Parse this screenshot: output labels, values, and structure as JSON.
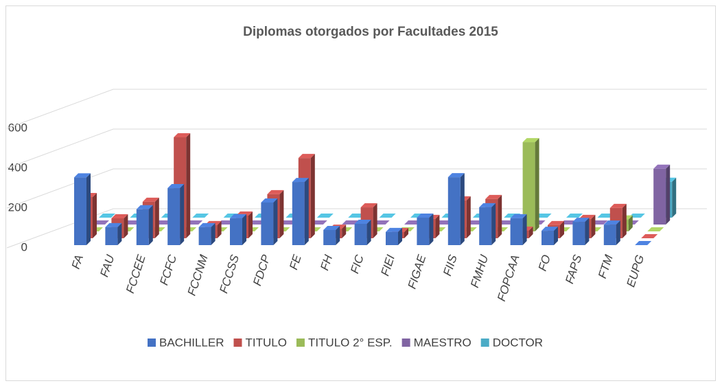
{
  "chart_data": {
    "type": "bar3d",
    "title": "Diplomas otorgados por Facultades 2015",
    "categories": [
      "FA",
      "FAU",
      "FCCEE",
      "FCFC",
      "FCCNM",
      "FCCSS",
      "FDCP",
      "FE",
      "FH",
      "FIC",
      "FIEI",
      "FIGAE",
      "FIIS",
      "FMHU",
      "FOPCAA",
      "FO",
      "FAPS",
      "FTM",
      "EUPG"
    ],
    "series": [
      {
        "name": "BACHILLER",
        "color": "#4472c4",
        "values": [
          340,
          90,
          180,
          286,
          90,
          135,
          214,
          317,
          76,
          107,
          66,
          138,
          341,
          190,
          135,
          72,
          117,
          103,
          0
        ]
      },
      {
        "name": "TITULO",
        "color": "#c0504d",
        "values": [
          207,
          100,
          183,
          507,
          66,
          114,
          221,
          403,
          48,
          155,
          31,
          97,
          190,
          197,
          38,
          66,
          97,
          152,
          0
        ]
      },
      {
        "name": "TITULO 2° ESP.",
        "color": "#9bbb59",
        "values": [
          0,
          0,
          0,
          0,
          0,
          0,
          0,
          0,
          0,
          0,
          0,
          0,
          0,
          0,
          448,
          0,
          0,
          60,
          0
        ]
      },
      {
        "name": "MAESTRO",
        "color": "#8064a2",
        "values": [
          0,
          0,
          0,
          0,
          0,
          0,
          0,
          0,
          0,
          0,
          0,
          0,
          0,
          0,
          0,
          0,
          0,
          0,
          280
        ]
      },
      {
        "name": "DOCTOR",
        "color": "#4bacc6",
        "values": [
          0,
          0,
          0,
          0,
          0,
          0,
          0,
          0,
          0,
          0,
          0,
          0,
          0,
          0,
          0,
          0,
          0,
          0,
          180
        ]
      }
    ],
    "ylim": [
      0,
      600
    ],
    "yticks": [
      0,
      200,
      400,
      600
    ],
    "grid": true,
    "legend": "bottom"
  }
}
